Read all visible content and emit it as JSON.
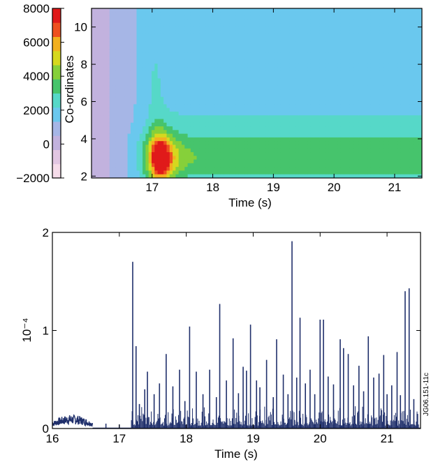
{
  "figure_id": "JG06.151-11c",
  "colors": {
    "axis": "#000000",
    "trace": "#1f2f6b",
    "colormap": [
      "#f6dcea",
      "#e2c6e2",
      "#c2b2de",
      "#a6b6e6",
      "#6ac8ee",
      "#56d8c8",
      "#46c46c",
      "#86d03a",
      "#d6d81e",
      "#f2b020",
      "#ee5020",
      "#e01a1a"
    ]
  },
  "colorbar": {
    "ticks": [
      "8000",
      "6000",
      "4000",
      "2000",
      "0",
      "−2000"
    ]
  },
  "chart_data": [
    {
      "type": "heatmap",
      "title": "",
      "xlabel": "Time (s)",
      "ylabel": "Co-ordinates",
      "xlim": [
        16.0,
        21.45
      ],
      "ylim": [
        1.9,
        11.0
      ],
      "xticks": [
        "17",
        "18",
        "19",
        "20",
        "21"
      ],
      "yticks": [
        "2",
        "4",
        "6",
        "8",
        "10"
      ],
      "color_range": [
        -2000,
        8000
      ],
      "background_value": 1500,
      "features": [
        {
          "kind": "gaussian",
          "t": 16.0,
          "c": 6.0,
          "st": 0.35,
          "sc": 30,
          "value": -1500
        },
        {
          "kind": "gaussian",
          "t": 17.1,
          "c": 3.0,
          "st": 0.22,
          "sc": 1.0,
          "value": 3200
        },
        {
          "kind": "gaussian",
          "t": 17.15,
          "c": 2.9,
          "st": 0.09,
          "sc": 0.7,
          "value": 3400
        },
        {
          "kind": "gaussian",
          "t": 17.05,
          "c": 6.5,
          "st": 0.1,
          "sc": 4.5,
          "value": 700
        },
        {
          "kind": "band",
          "t_from": 17.0,
          "c": 2.9,
          "sc": 0.9,
          "value": 1800
        },
        {
          "kind": "band",
          "t_from": 17.0,
          "c": 4.3,
          "sc": 1.6,
          "value": 700
        }
      ]
    },
    {
      "type": "line",
      "title": "",
      "xlabel": "Time (s)",
      "ylabel": "10⁻⁴",
      "xlim": [
        16.0,
        21.5
      ],
      "ylim": [
        0,
        2
      ],
      "xticks": [
        "16",
        "17",
        "18",
        "19",
        "20",
        "21"
      ],
      "yticks": [
        "0",
        "1",
        "2"
      ],
      "spikes": [
        {
          "x": 17.2,
          "y": 1.7
        },
        {
          "x": 17.25,
          "y": 0.84
        },
        {
          "x": 17.3,
          "y": 0.25
        },
        {
          "x": 17.38,
          "y": 0.4
        },
        {
          "x": 17.42,
          "y": 0.58
        },
        {
          "x": 17.52,
          "y": 0.35
        },
        {
          "x": 17.6,
          "y": 0.46
        },
        {
          "x": 17.7,
          "y": 0.76
        },
        {
          "x": 17.8,
          "y": 0.43
        },
        {
          "x": 17.9,
          "y": 0.6
        },
        {
          "x": 17.98,
          "y": 0.28
        },
        {
          "x": 18.05,
          "y": 1.04
        },
        {
          "x": 18.15,
          "y": 0.58
        },
        {
          "x": 18.25,
          "y": 0.35
        },
        {
          "x": 18.35,
          "y": 0.6
        },
        {
          "x": 18.45,
          "y": 0.32
        },
        {
          "x": 18.5,
          "y": 1.27
        },
        {
          "x": 18.6,
          "y": 0.49
        },
        {
          "x": 18.7,
          "y": 0.92
        },
        {
          "x": 18.78,
          "y": 0.36
        },
        {
          "x": 18.85,
          "y": 0.63
        },
        {
          "x": 18.9,
          "y": 0.59
        },
        {
          "x": 18.96,
          "y": 1.06
        },
        {
          "x": 19.05,
          "y": 0.49
        },
        {
          "x": 19.1,
          "y": 0.42
        },
        {
          "x": 19.2,
          "y": 0.7
        },
        {
          "x": 19.3,
          "y": 0.32
        },
        {
          "x": 19.35,
          "y": 0.91
        },
        {
          "x": 19.45,
          "y": 0.55
        },
        {
          "x": 19.52,
          "y": 0.35
        },
        {
          "x": 19.58,
          "y": 1.91
        },
        {
          "x": 19.65,
          "y": 0.52
        },
        {
          "x": 19.7,
          "y": 1.13
        },
        {
          "x": 19.78,
          "y": 0.46
        },
        {
          "x": 19.85,
          "y": 0.6
        },
        {
          "x": 19.92,
          "y": 0.35
        },
        {
          "x": 20.0,
          "y": 1.11
        },
        {
          "x": 20.05,
          "y": 1.11
        },
        {
          "x": 20.12,
          "y": 0.53
        },
        {
          "x": 20.2,
          "y": 0.45
        },
        {
          "x": 20.3,
          "y": 0.91
        },
        {
          "x": 20.35,
          "y": 0.82
        },
        {
          "x": 20.42,
          "y": 0.76
        },
        {
          "x": 20.5,
          "y": 0.44
        },
        {
          "x": 20.58,
          "y": 0.64
        },
        {
          "x": 20.65,
          "y": 0.38
        },
        {
          "x": 20.72,
          "y": 0.94
        },
        {
          "x": 20.8,
          "y": 0.52
        },
        {
          "x": 20.88,
          "y": 0.56
        },
        {
          "x": 20.95,
          "y": 0.75
        },
        {
          "x": 21.0,
          "y": 0.35
        },
        {
          "x": 21.07,
          "y": 0.44
        },
        {
          "x": 21.15,
          "y": 0.78
        },
        {
          "x": 21.2,
          "y": 0.34
        },
        {
          "x": 21.27,
          "y": 1.4
        },
        {
          "x": 21.33,
          "y": 1.43
        },
        {
          "x": 21.4,
          "y": 0.3
        },
        {
          "x": 21.45,
          "y": 0.15
        }
      ],
      "early_noise": {
        "x_range": [
          16.0,
          16.6
        ],
        "y_max": 0.14
      },
      "isolated_blips": [
        {
          "x": 16.8,
          "y": 0.05
        },
        {
          "x": 17.0,
          "y": 0.04
        }
      ]
    }
  ]
}
